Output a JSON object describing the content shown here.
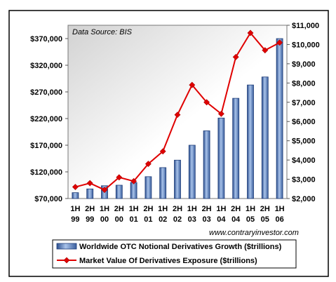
{
  "chart_data": {
    "type": "bar",
    "title": "",
    "source_note": "Data Source:  BIS",
    "watermark": "www.contraryinvestor.com",
    "categories": [
      [
        "1H",
        "99"
      ],
      [
        "2H",
        "99"
      ],
      [
        "1H",
        "00"
      ],
      [
        "2H",
        "00"
      ],
      [
        "1H",
        "01"
      ],
      [
        "2H",
        "01"
      ],
      [
        "1H",
        "02"
      ],
      [
        "2H",
        "02"
      ],
      [
        "1H",
        "03"
      ],
      [
        "2H",
        "03"
      ],
      [
        "1H",
        "04"
      ],
      [
        "2H",
        "04"
      ],
      [
        "1H",
        "05"
      ],
      [
        "2H",
        "05"
      ],
      [
        "1H",
        "06"
      ]
    ],
    "left_axis": {
      "min": 70000,
      "max": 395000,
      "ticks": [
        70000,
        120000,
        170000,
        220000,
        270000,
        320000,
        370000
      ],
      "tick_labels": [
        "$70,000",
        "$120,000",
        "$170,000",
        "$220,000",
        "$270,000",
        "$320,000",
        "$370,000"
      ]
    },
    "right_axis": {
      "min": 2000,
      "max": 11000,
      "ticks": [
        2000,
        3000,
        4000,
        5000,
        6000,
        7000,
        8000,
        9000,
        10000,
        11000
      ],
      "tick_labels": [
        "$2,000",
        "$3,000",
        "$4,000",
        "$5,000",
        "$6,000",
        "$7,000",
        "$8,000",
        "$9,000",
        "$10,000",
        "$11,000"
      ]
    },
    "series": [
      {
        "name": "Worldwide OTC Notional Derivatives Growth ($trillions)",
        "type": "bar",
        "axis": "left",
        "color": "#5b86c8",
        "values": [
          81000,
          88000,
          94000,
          95000,
          100000,
          111000,
          128000,
          142000,
          170000,
          197000,
          221000,
          258000,
          283000,
          298000,
          370000
        ]
      },
      {
        "name": "Market Value Of Derivatives Exposure ($trillions)",
        "type": "line",
        "axis": "right",
        "color": "#e00000",
        "values": [
          2600,
          2800,
          2450,
          3100,
          2900,
          3800,
          4450,
          6350,
          7900,
          7000,
          6400,
          9350,
          10600,
          9700,
          10100
        ]
      }
    ],
    "grid": false,
    "legend_position": "bottom"
  }
}
